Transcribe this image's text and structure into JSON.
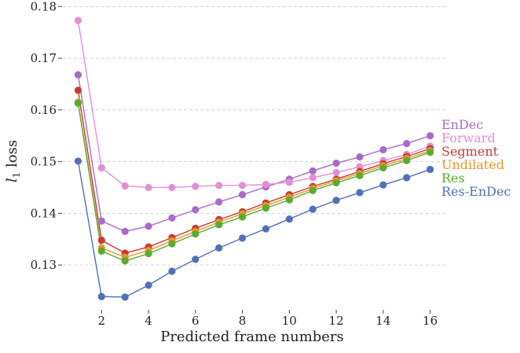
{
  "chart_data": {
    "type": "line",
    "xlabel": "Predicted frame numbers",
    "ylabel": "l1 loss",
    "ylabel_main": "l",
    "ylabel_sub": "1",
    "ylabel_rest": " loss",
    "xlim": [
      0.35,
      16.75
    ],
    "ylim": [
      0.1215,
      0.1805
    ],
    "x_ticks": [
      2,
      4,
      6,
      8,
      10,
      12,
      14,
      16
    ],
    "x_tick_labels": [
      "2",
      "4",
      "6",
      "8",
      "10",
      "12",
      "14",
      "16"
    ],
    "y_ticks": [
      0.13,
      0.14,
      0.15,
      0.16,
      0.17,
      0.18
    ],
    "y_tick_labels": [
      "0.13",
      "0.14",
      "0.15",
      "0.16",
      "0.17",
      "0.18"
    ],
    "grid": "horizontal dashed",
    "legend": "right, labels at line ends",
    "x": [
      1,
      2,
      3,
      4,
      5,
      6,
      7,
      8,
      9,
      10,
      11,
      12,
      13,
      14,
      15,
      16
    ],
    "series": [
      {
        "name": "EnDec",
        "color": "#a86cc8",
        "values": [
          0.1668,
          0.1385,
          0.1365,
          0.1375,
          0.1391,
          0.1407,
          0.1422,
          0.1436,
          0.1451,
          0.1466,
          0.1482,
          0.1497,
          0.1509,
          0.1523,
          0.1535,
          0.155
        ]
      },
      {
        "name": "Forward",
        "color": "#e38fd6",
        "values": [
          0.1773,
          0.1488,
          0.1453,
          0.145,
          0.145,
          0.1452,
          0.1454,
          0.1454,
          0.1456,
          0.146,
          0.1469,
          0.1479,
          0.149,
          0.1502,
          0.1514,
          0.153
        ]
      },
      {
        "name": "Segment",
        "color": "#c83a30",
        "values": [
          0.1638,
          0.1348,
          0.1323,
          0.1335,
          0.1353,
          0.1371,
          0.1388,
          0.1403,
          0.142,
          0.1436,
          0.1452,
          0.1466,
          0.1481,
          0.1496,
          0.151,
          0.1525
        ]
      },
      {
        "name": "Undilated",
        "color": "#e8962a",
        "values": [
          0.1615,
          0.1333,
          0.1315,
          0.1328,
          0.1347,
          0.1365,
          0.1383,
          0.1399,
          0.1415,
          0.1431,
          0.1448,
          0.1463,
          0.1477,
          0.1492,
          0.1506,
          0.1521
        ]
      },
      {
        "name": "Res",
        "color": "#5aab30",
        "values": [
          0.1613,
          0.1327,
          0.1308,
          0.1322,
          0.1341,
          0.136,
          0.1378,
          0.1393,
          0.141,
          0.1426,
          0.1444,
          0.1459,
          0.1473,
          0.1488,
          0.1502,
          0.1518
        ]
      },
      {
        "name": "Res-EnDec",
        "color": "#5070b8",
        "values": [
          0.1501,
          0.1239,
          0.1238,
          0.1261,
          0.1288,
          0.1311,
          0.1333,
          0.1352,
          0.137,
          0.1389,
          0.1408,
          0.1425,
          0.144,
          0.1455,
          0.1469,
          0.1485
        ]
      }
    ]
  }
}
